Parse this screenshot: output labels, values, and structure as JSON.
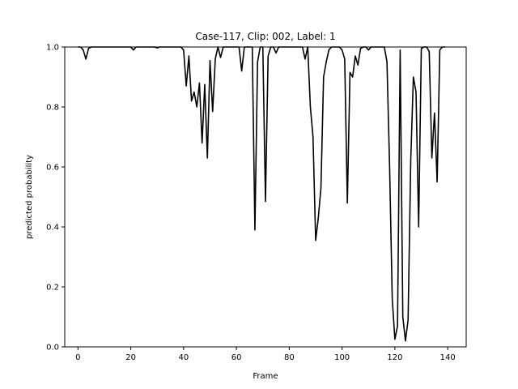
{
  "chart_data": {
    "type": "line",
    "title": "Case-117, Clip: 002, Label: 1",
    "xlabel": "Frame",
    "ylabel": "predicted probability",
    "xlim": [
      -5,
      147
    ],
    "ylim": [
      0.0,
      1.0
    ],
    "xticks": [
      0,
      20,
      40,
      60,
      80,
      100,
      120,
      140
    ],
    "yticks": [
      0.0,
      0.2,
      0.4,
      0.6,
      0.8,
      1.0
    ],
    "xtick_labels": [
      "0",
      "20",
      "40",
      "60",
      "80",
      "100",
      "120",
      "140"
    ],
    "ytick_labels": [
      "0.0",
      "0.2",
      "0.4",
      "0.6",
      "0.8",
      "1.0"
    ],
    "grid": false,
    "line_color": "#000000",
    "series": [
      {
        "x": [
          0,
          1,
          2,
          3,
          4,
          5,
          6,
          7,
          8,
          9,
          10,
          11,
          12,
          13,
          14,
          15,
          16,
          17,
          18,
          19,
          20,
          21,
          22,
          23,
          24,
          25,
          26,
          27,
          28,
          29,
          30,
          31,
          32,
          33,
          34,
          35,
          36,
          37,
          38,
          39,
          40,
          41,
          42,
          43,
          44,
          45,
          46,
          47,
          48,
          49,
          50,
          51,
          52,
          53,
          54,
          55,
          56,
          57,
          58,
          59,
          60,
          61,
          62,
          63,
          64,
          65,
          66,
          67,
          68,
          69,
          70,
          71,
          72,
          73,
          74,
          75,
          76,
          77,
          78,
          79,
          80,
          81,
          82,
          83,
          84,
          85,
          86,
          87,
          88,
          89,
          90,
          91,
          92,
          93,
          94,
          95,
          96,
          97,
          98,
          99,
          100,
          101,
          102,
          103,
          104,
          105,
          106,
          107,
          108,
          109,
          110,
          111,
          112,
          113,
          114,
          115,
          116,
          117,
          118,
          119,
          120,
          121,
          122,
          123,
          124,
          125,
          126,
          127,
          128,
          129,
          130,
          131,
          132,
          133,
          134,
          135,
          136,
          137,
          138,
          139
        ],
        "y": [
          1.0,
          1.0,
          0.99,
          0.96,
          0.995,
          1.0,
          1.0,
          1.0,
          1.0,
          1.0,
          1.0,
          1.0,
          1.0,
          1.0,
          1.0,
          1.0,
          1.0,
          1.0,
          1.0,
          1.0,
          1.0,
          0.99,
          1.0,
          1.0,
          1.0,
          1.0,
          1.0,
          1.0,
          1.0,
          1.0,
          0.997,
          1.0,
          1.0,
          1.0,
          1.0,
          1.0,
          1.0,
          1.0,
          1.0,
          1.0,
          0.99,
          0.87,
          0.97,
          0.82,
          0.85,
          0.8,
          0.88,
          0.68,
          0.875,
          0.63,
          0.955,
          0.785,
          0.96,
          1.0,
          0.965,
          1.0,
          1.0,
          1.0,
          1.0,
          1.0,
          1.0,
          1.0,
          0.92,
          1.0,
          1.0,
          1.0,
          1.0,
          0.39,
          0.95,
          1.0,
          1.0,
          0.485,
          0.97,
          1.0,
          1.0,
          0.98,
          1.0,
          1.0,
          1.0,
          1.0,
          1.0,
          1.0,
          1.0,
          1.0,
          1.0,
          1.0,
          0.96,
          1.0,
          0.8,
          0.7,
          0.355,
          0.43,
          0.53,
          0.9,
          0.95,
          0.99,
          1.0,
          1.0,
          1.0,
          1.0,
          0.99,
          0.96,
          0.48,
          0.915,
          0.9,
          0.97,
          0.94,
          0.995,
          1.0,
          1.0,
          0.99,
          1.0,
          1.0,
          1.0,
          1.0,
          1.0,
          1.0,
          0.95,
          0.6,
          0.16,
          0.025,
          0.07,
          0.99,
          0.1,
          0.02,
          0.09,
          0.62,
          0.9,
          0.85,
          0.4,
          0.995,
          1.0,
          1.0,
          0.985,
          0.63,
          0.78,
          0.55,
          0.99,
          1.0,
          1.0
        ]
      }
    ]
  }
}
